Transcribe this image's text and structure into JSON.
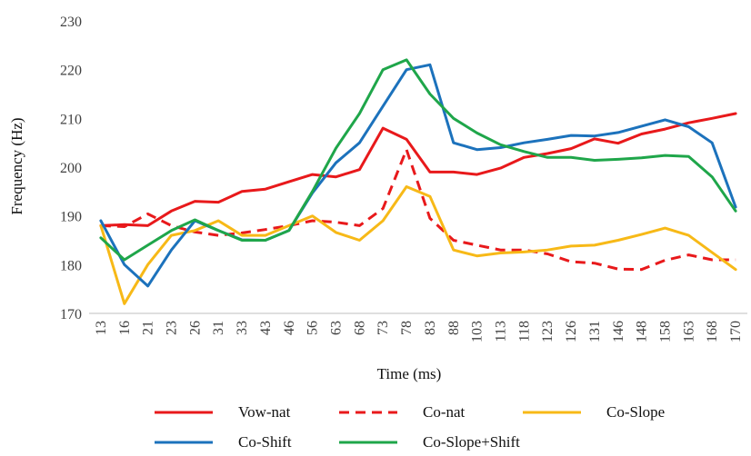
{
  "chart_data": {
    "type": "line",
    "title": "",
    "xlabel": "Time (ms)",
    "ylabel": "Frequency (Hz)",
    "ylim": [
      170,
      230
    ],
    "yticks": [
      170,
      180,
      190,
      200,
      210,
      220,
      230
    ],
    "grid": false,
    "legend_position": "bottom",
    "categories": [
      "13",
      "16",
      "21",
      "23",
      "26",
      "31",
      "33",
      "43",
      "46",
      "56",
      "63",
      "68",
      "73",
      "78",
      "83",
      "88",
      "103",
      "113",
      "118",
      "123",
      "126",
      "131",
      "146",
      "148",
      "158",
      "163",
      "168",
      "170"
    ],
    "series": [
      {
        "name": "Vow-nat",
        "color": "#e8191b",
        "dash": "solid",
        "values": [
          188,
          188.2,
          188,
          191,
          193,
          192.8,
          195,
          195.5,
          197,
          198.5,
          198,
          199.5,
          208,
          205.7,
          199,
          199,
          198.5,
          199.8,
          202,
          202.8,
          203.8,
          205.8,
          204.9,
          206.8,
          207.8,
          209.1,
          210,
          211
        ]
      },
      {
        "name": "Co-nat",
        "color": "#e8191b",
        "dash": "dashed",
        "values": [
          188,
          187.8,
          190.4,
          188,
          186.7,
          186,
          186.5,
          187.2,
          188,
          189,
          188.7,
          188,
          191.5,
          203.6,
          189.5,
          185,
          184,
          183,
          183,
          182.2,
          180.6,
          180.3,
          179.1,
          179,
          180.9,
          182,
          181,
          181
        ]
      },
      {
        "name": "Co-Slope",
        "color": "#f7b917",
        "dash": "solid",
        "values": [
          188,
          172,
          180,
          186,
          187,
          189,
          186,
          186,
          188,
          190,
          186.6,
          185,
          189,
          196,
          194,
          183,
          181.8,
          182.4,
          182.6,
          183,
          183.8,
          184,
          185,
          186.2,
          187.5,
          186,
          182.5,
          179
        ]
      },
      {
        "name": "Co-Shift",
        "color": "#1c72bc",
        "dash": "solid",
        "values": [
          189,
          180,
          175.6,
          183,
          189,
          187,
          185.1,
          185,
          187,
          194.7,
          200.9,
          205,
          212.5,
          220,
          221,
          205,
          203.6,
          204,
          205,
          205.7,
          206.5,
          206.4,
          207.1,
          208.4,
          209.7,
          208.3,
          205,
          191.8
        ]
      },
      {
        "name": "Co-Slope+Shift",
        "color": "#1fa64a",
        "dash": "solid",
        "values": [
          185.5,
          181,
          184,
          187,
          189.2,
          187,
          185,
          185,
          187,
          195,
          203.9,
          211,
          220,
          222,
          215,
          210,
          207,
          204.6,
          203.2,
          202,
          202,
          201.4,
          201.6,
          201.9,
          202.4,
          202.2,
          198,
          191
        ]
      }
    ]
  }
}
